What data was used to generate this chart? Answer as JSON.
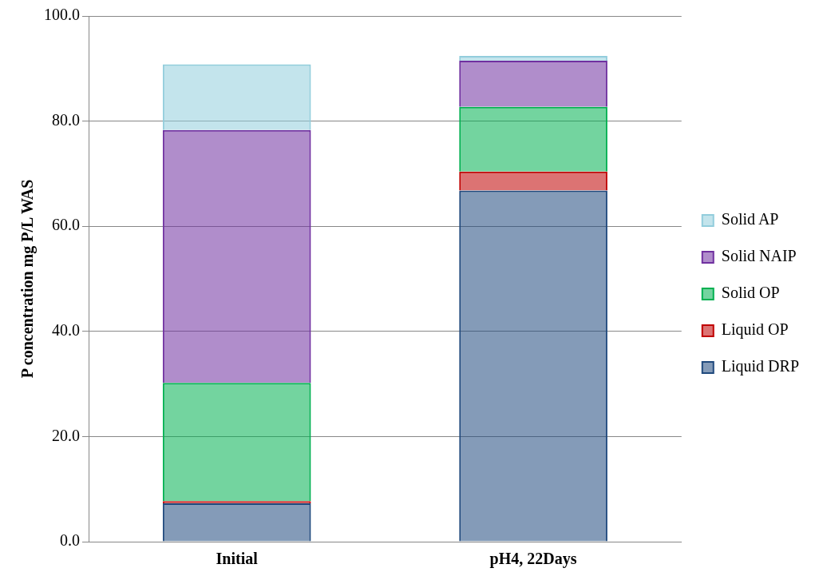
{
  "chart_data": {
    "type": "bar",
    "stacked": true,
    "ylabel": "P concentration mg P/L WAS",
    "categories": [
      "Initial",
      "pH4, 22Days"
    ],
    "series": [
      {
        "name": "Liquid DRP",
        "color": "#1f497d",
        "values": [
          7.3,
          66.8
        ]
      },
      {
        "name": "Liquid OP",
        "color": "#c00000",
        "values": [
          0.4,
          3.6
        ]
      },
      {
        "name": "Solid OP",
        "color": "#00b050",
        "values": [
          22.5,
          12.3
        ]
      },
      {
        "name": "Solid NAIP",
        "color": "#7030a0",
        "values": [
          48.1,
          8.8
        ]
      },
      {
        "name": "Solid AP",
        "color": "#92cddc",
        "values": [
          12.5,
          0.9
        ]
      }
    ],
    "ylim": [
      0,
      100
    ],
    "yticks": [
      {
        "value": 0,
        "label": "0.0"
      },
      {
        "value": 20,
        "label": "20.0"
      },
      {
        "value": 40,
        "label": "40.0"
      },
      {
        "value": 60,
        "label": "60.0"
      },
      {
        "value": 80,
        "label": "80.0"
      },
      {
        "value": 100,
        "label": "100.0"
      }
    ],
    "grid": "y",
    "legend": "right"
  }
}
